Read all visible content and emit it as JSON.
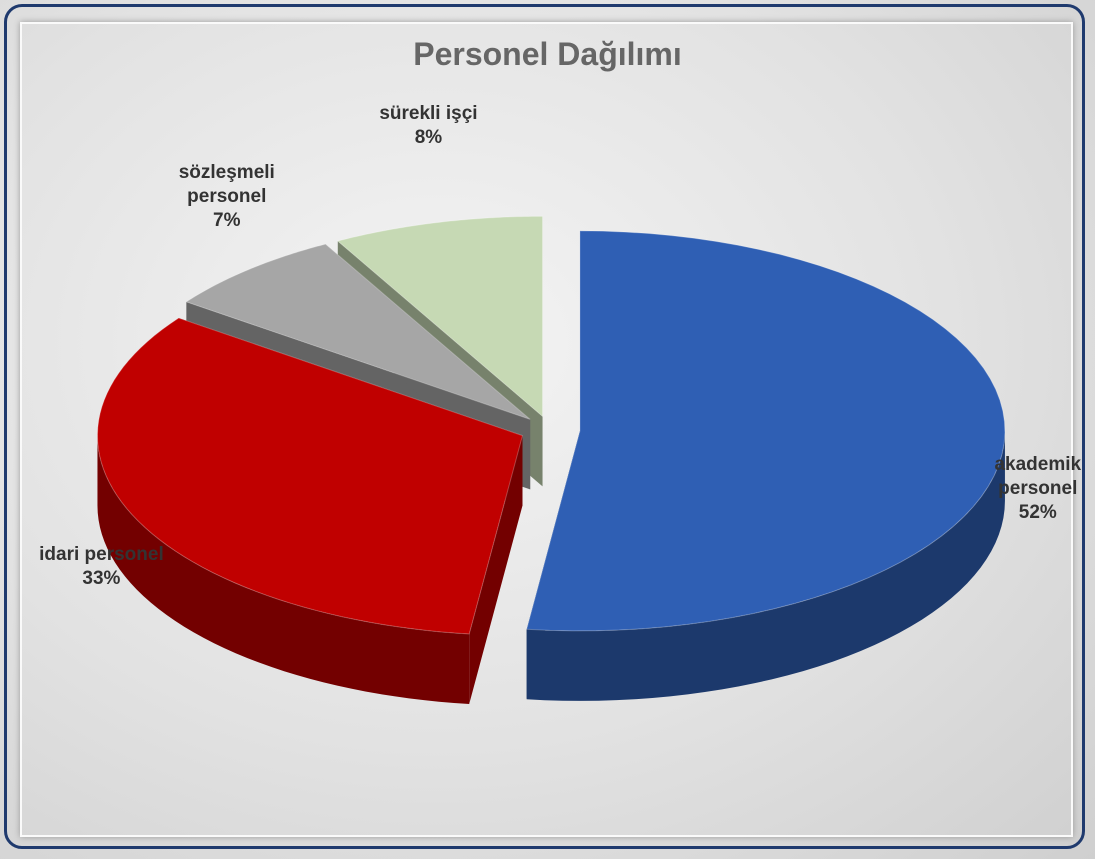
{
  "chart_data": {
    "type": "pie",
    "title": "Personel Dağılımı",
    "categories": [
      "akademik personel",
      "idari personel",
      "sözleşmeli personel",
      "sürekli işçi"
    ],
    "values": [
      52,
      33,
      7,
      8
    ],
    "value_labels": [
      "52%",
      "33%",
      "7%",
      "8%"
    ],
    "colors": [
      "#2f5fb4",
      "#c00000",
      "#a6a6a6",
      "#c6d9b4"
    ]
  }
}
